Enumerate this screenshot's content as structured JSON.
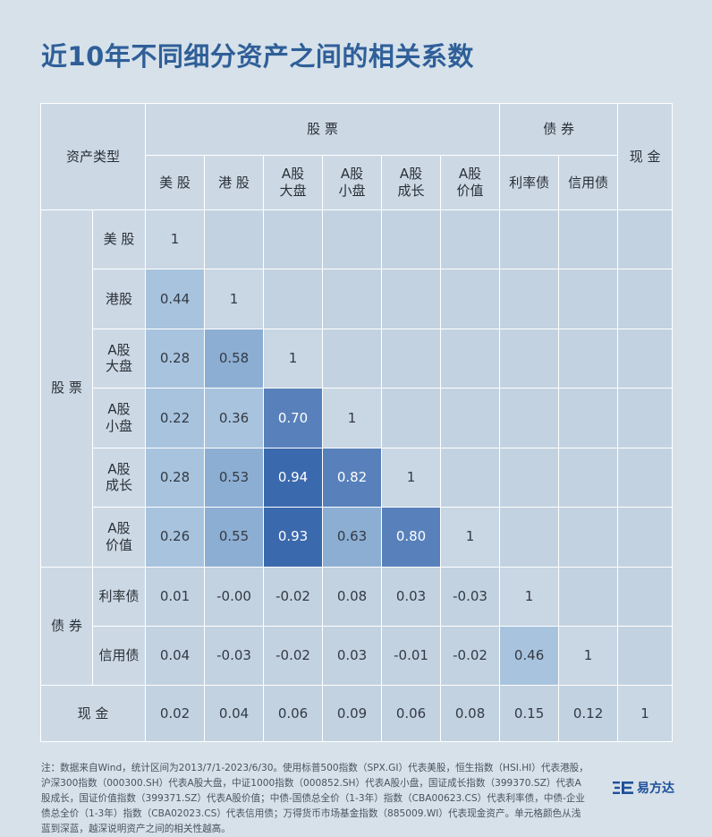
{
  "title": "近10年不同细分资产之间的相关系数",
  "header": {
    "corner": "资产类型",
    "stocks_group": "股 票",
    "bonds_group": "债 券",
    "cash": "现 金",
    "col_us": "美 股",
    "col_hk": "港 股",
    "col_a_large": [
      "A股",
      "大盘"
    ],
    "col_a_small": [
      "A股",
      "小盘"
    ],
    "col_a_growth": [
      "A股",
      "成长"
    ],
    "col_a_value": [
      "A股",
      "价值"
    ],
    "col_rate_bond": "利率债",
    "col_credit_bond": "信用债"
  },
  "row_groups": {
    "stocks": "股 票",
    "bonds": "债 券",
    "cash": "现 金"
  },
  "row_labels": {
    "us": "美 股",
    "hk": "港股",
    "a_large": [
      "A股",
      "大盘"
    ],
    "a_small": [
      "A股",
      "小盘"
    ],
    "a_growth": [
      "A股",
      "成长"
    ],
    "a_value": [
      "A股",
      "价值"
    ],
    "rate_bond": "利率债",
    "credit_bond": "信用债"
  },
  "colors": {
    "cell_default": "#c3d2e0",
    "cell_diag": "#c9d6e3",
    "header_bg": "#ccd9e5",
    "diag_text": "#333a44",
    "strong": "#3b69ad",
    "medium_strong": "#5881bb",
    "medium": "#8caed3",
    "light": "#a8c3dd"
  },
  "chart_data": {
    "type": "heatmap",
    "title": "近10年不同细分资产之间的相关系数",
    "categories": [
      "美股",
      "港股",
      "A股大盘",
      "A股小盘",
      "A股成长",
      "A股价值",
      "利率债",
      "信用债",
      "现金"
    ],
    "matrix_lower": [
      [
        "1"
      ],
      [
        "0.44",
        "1"
      ],
      [
        "0.28",
        "0.58",
        "1"
      ],
      [
        "0.22",
        "0.36",
        "0.70",
        "1"
      ],
      [
        "0.28",
        "0.53",
        "0.94",
        "0.82",
        "1"
      ],
      [
        "0.26",
        "0.55",
        "0.93",
        "0.63",
        "0.80",
        "1"
      ],
      [
        "0.01",
        "-0.00",
        "-0.02",
        "0.08",
        "0.03",
        "-0.03",
        "1"
      ],
      [
        "0.04",
        "-0.03",
        "-0.02",
        "0.03",
        "-0.01",
        "-0.02",
        "0.46",
        "1"
      ],
      [
        "0.02",
        "0.04",
        "0.06",
        "0.09",
        "0.06",
        "0.08",
        "0.15",
        "0.12",
        "1"
      ]
    ],
    "color_rule": "单元格颜色从浅蓝到深蓝，越深说明资产之间的相关性越高"
  },
  "footnote": "注：数据来自Wind，统计区间为2013/7/1-2023/6/30。使用标普500指数（SPX.GI）代表美股，恒生指数（HSI.HI）代表港股，沪深300指数（000300.SH）代表A股大盘，中证1000指数（000852.SH）代表A股小盘，国证成长指数（399370.SZ）代表A股成长，国证价值指数（399371.SZ）代表A股价值；中债-国债总全价（1-3年）指数（CBA00623.CS）代表利率债，中债-企业债总全价（1-3年）指数（CBA02023.CS）代表信用债；万得货币市场基金指数（885009.WI）代表现金资产。单元格颜色从浅蓝到深蓝，越深说明资产之间的相关性越高。",
  "logo": {
    "text": "易方达",
    "icon": "efund-logo-icon"
  }
}
